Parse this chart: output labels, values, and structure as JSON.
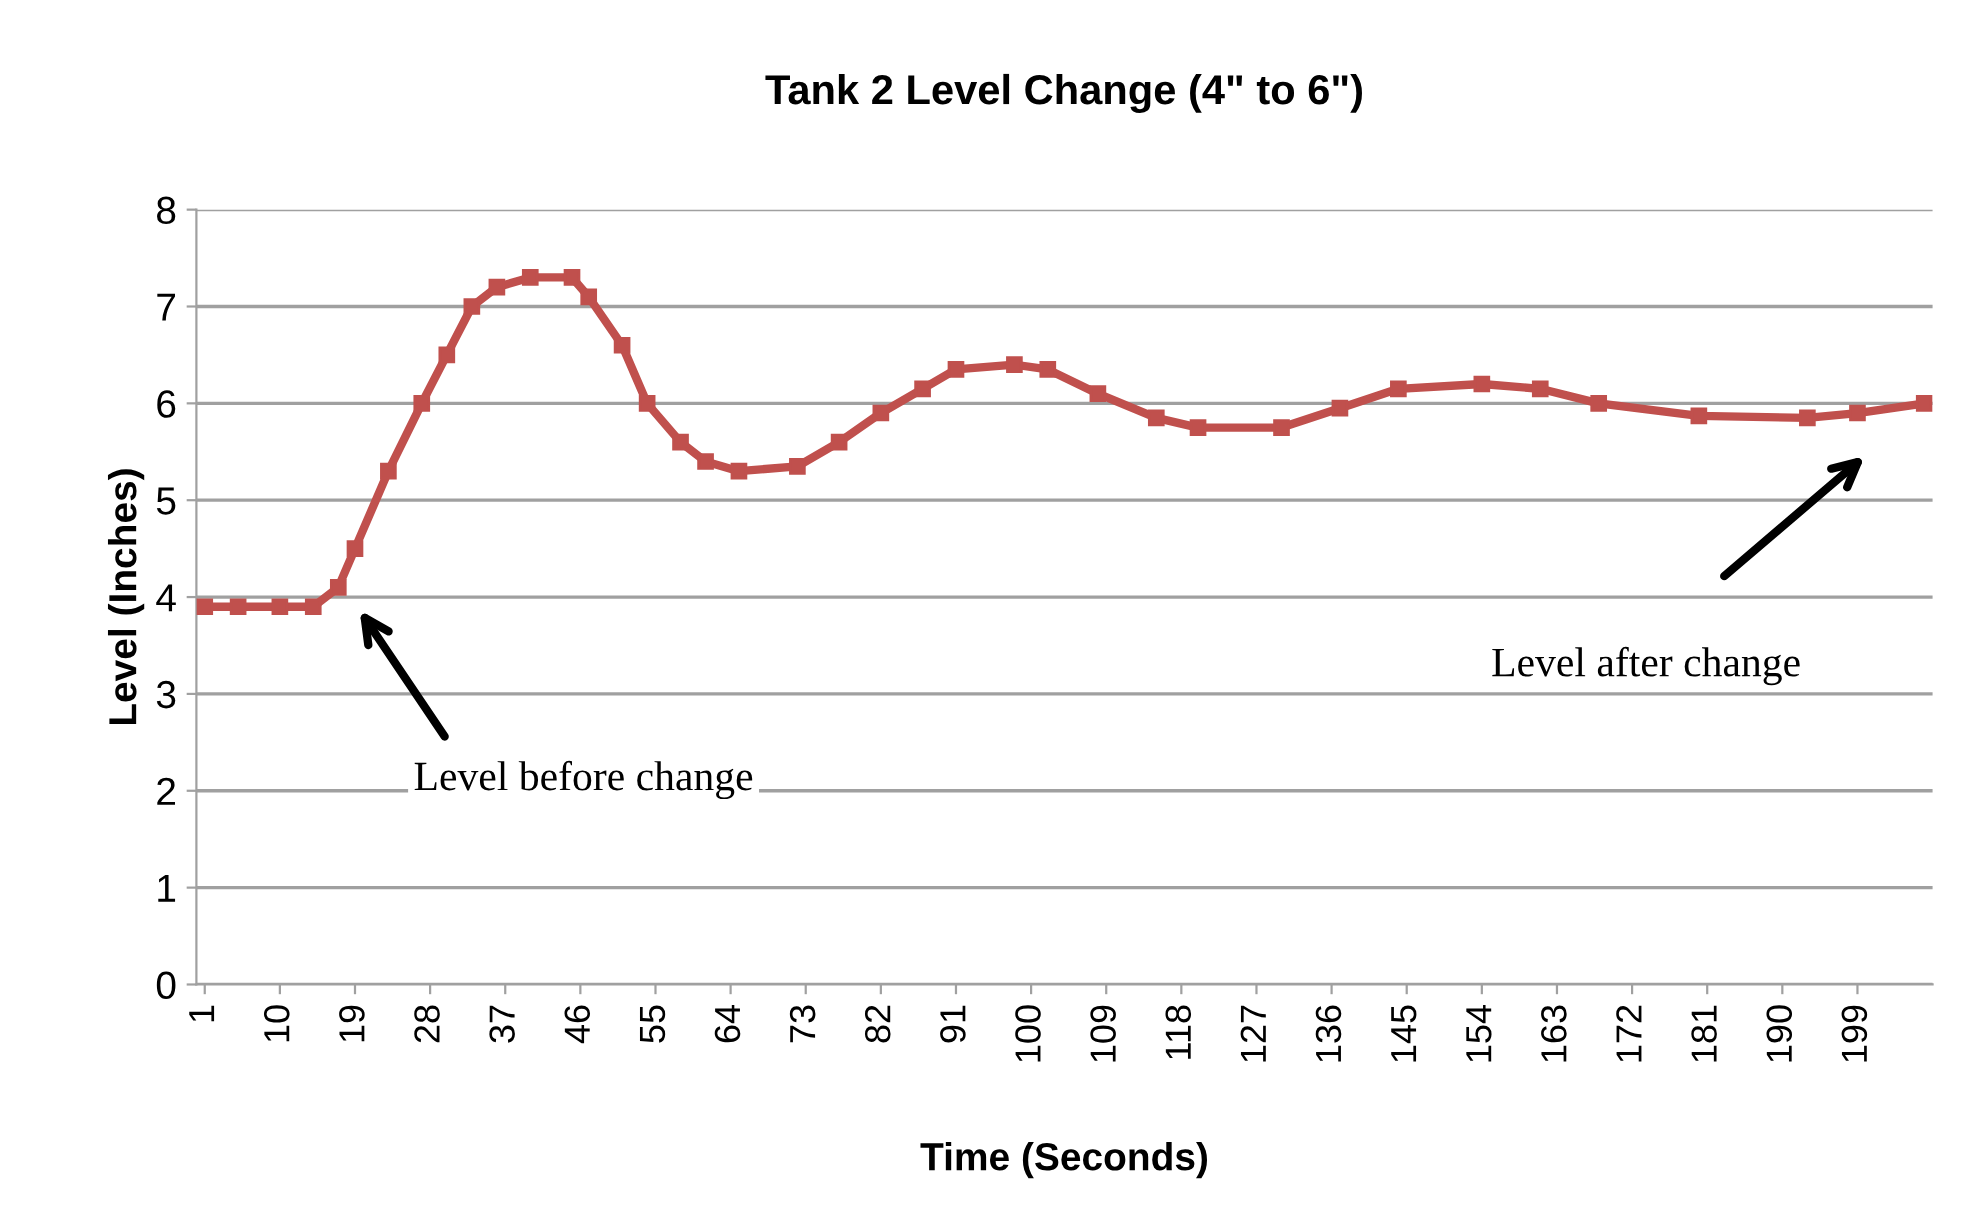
{
  "chart_data": {
    "type": "line",
    "title": "Tank 2 Level Change (4\" to 6\")",
    "xlabel": "Time (Seconds)",
    "ylabel": "Level (Inches)",
    "series": [
      {
        "color": "#c0504d",
        "x": [
          1,
          5,
          10,
          14,
          17,
          19,
          23,
          27,
          30,
          33,
          36,
          40,
          45,
          47,
          51,
          54,
          58,
          61,
          65,
          72,
          77,
          82,
          87,
          91,
          98,
          102,
          108,
          115,
          120,
          130,
          137,
          144,
          154,
          161,
          168,
          180,
          193,
          199,
          207
        ],
        "values": [
          3.9,
          3.9,
          3.9,
          3.9,
          4.1,
          4.5,
          5.3,
          6.0,
          6.5,
          7.0,
          7.2,
          7.3,
          7.3,
          7.1,
          6.6,
          6.0,
          5.6,
          5.4,
          5.3,
          5.35,
          5.6,
          5.9,
          6.15,
          6.35,
          6.4,
          6.35,
          6.1,
          5.85,
          5.75,
          5.75,
          5.95,
          6.15,
          6.2,
          6.15,
          6.0,
          5.87,
          5.85,
          5.9,
          6.0
        ]
      }
    ],
    "marker": "square",
    "line_style": "solid",
    "xlim": [
      0,
      208
    ],
    "xticks": [
      1,
      10,
      19,
      28,
      37,
      46,
      55,
      64,
      73,
      82,
      91,
      100,
      109,
      118,
      127,
      136,
      145,
      154,
      163,
      172,
      181,
      190,
      199
    ],
    "ylim": [
      0,
      8
    ],
    "yticks": [
      0,
      1,
      2,
      3,
      4,
      5,
      6,
      7,
      8
    ],
    "grid": "y",
    "annotations": [
      "Level before change",
      "Level after change"
    ]
  }
}
